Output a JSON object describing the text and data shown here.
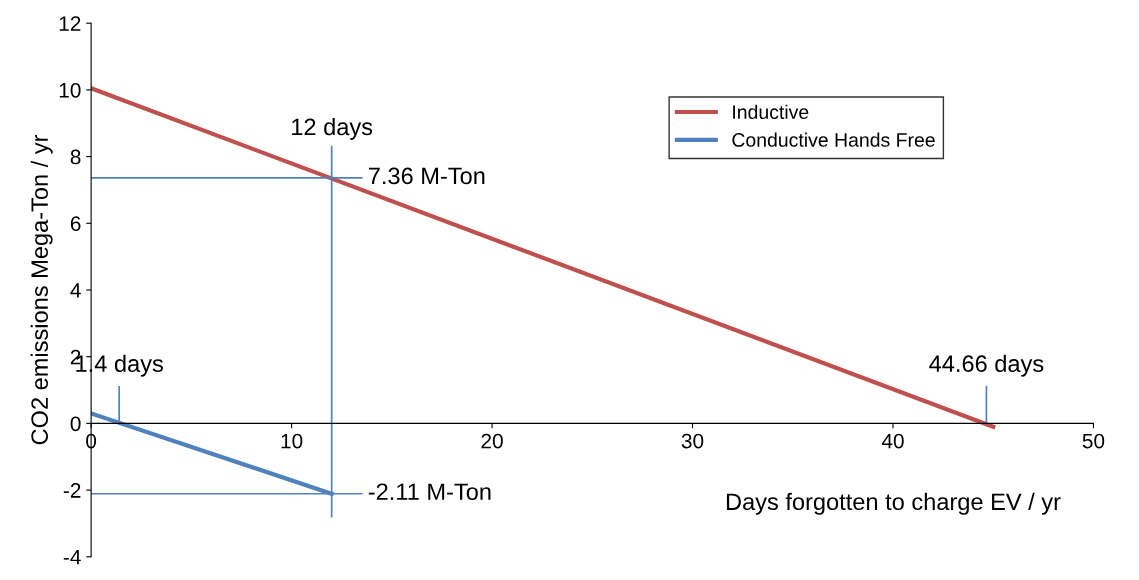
{
  "chart_data": {
    "type": "line",
    "xlabel": "Days forgotten to charge EV / yr",
    "ylabel": "CO2 emissions Mega-Ton / yr",
    "series": [
      {
        "name": "Inductive",
        "color": "#c0504d",
        "x": [
          0,
          45
        ],
        "values": [
          10.05,
          -0.1
        ]
      },
      {
        "name": "Conductive Hands Free",
        "color": "#4f81bd",
        "x": [
          0,
          12
        ],
        "values": [
          0.3,
          -2.11
        ]
      }
    ],
    "xlim": [
      0,
      50
    ],
    "xticks": [
      0,
      10,
      20,
      30,
      40,
      50
    ],
    "ylim": [
      -4,
      12
    ],
    "yticks": [
      -4,
      -2,
      0,
      2,
      4,
      6,
      8,
      10,
      12
    ],
    "ref_lines": [
      {
        "axis": "x",
        "value": 12,
        "color": "#4f81bd"
      },
      {
        "axis": "y",
        "value": 7.36,
        "color": "#4f81bd"
      },
      {
        "axis": "y",
        "value": -2.11,
        "color": "#4f81bd"
      }
    ],
    "annotations": [
      {
        "text": "12 days",
        "x": 12,
        "y": 8.3
      },
      {
        "text": "7.36 M-Ton",
        "x": 12,
        "y": 7.36
      },
      {
        "text": "1.4 days",
        "x": 1.4,
        "y": 0
      },
      {
        "text": "-2.11 M-Ton",
        "x": 12,
        "y": -2.11
      },
      {
        "text": "44.66 days",
        "x": 44.66,
        "y": 0
      }
    ],
    "grid": false,
    "legend": "top right",
    "marker": "none",
    "line_style": "solid"
  }
}
